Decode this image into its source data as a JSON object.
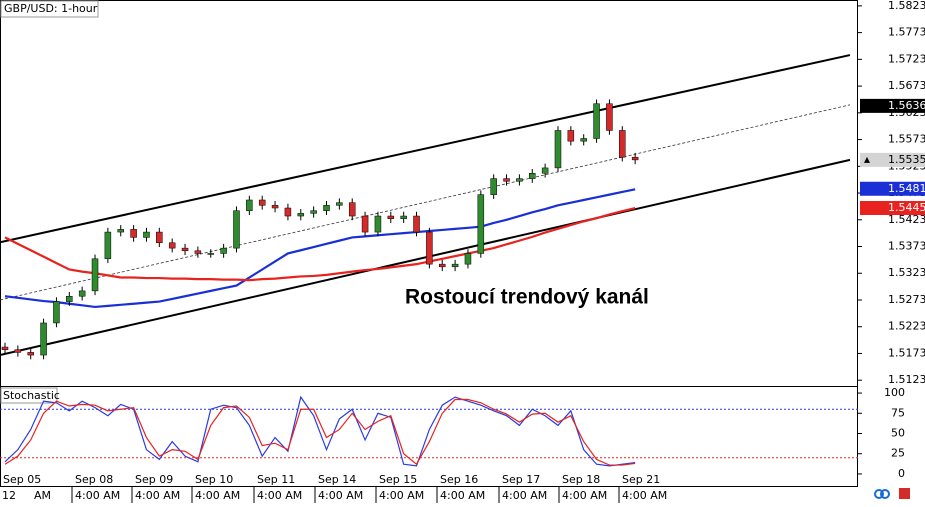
{
  "chart_data": {
    "type": "candlestick",
    "title": "GBP/USD: 1-hour",
    "annotation": "Rostoucí trendový kanál",
    "up_color": "#2e8b2e",
    "down_color": "#d42a2a",
    "open": [
      1.5185,
      1.518,
      1.5175,
      1.517,
      1.523,
      1.527,
      1.528,
      1.529,
      1.535,
      1.54,
      1.5405,
      1.539,
      1.54,
      1.538,
      1.537,
      1.5365,
      1.536,
      1.536,
      1.537,
      1.544,
      1.546,
      1.545,
      1.5445,
      1.543,
      1.5435,
      1.544,
      1.545,
      1.5455,
      1.543,
      1.54,
      1.543,
      1.5425,
      1.543,
      1.54,
      1.534,
      1.5335,
      1.534,
      1.536,
      1.547,
      1.55,
      1.5495,
      1.55,
      1.551,
      1.552,
      1.559,
      1.557,
      1.5575,
      1.564,
      1.559,
      1.554
    ],
    "high": [
      1.5193,
      1.5188,
      1.5183,
      1.5238,
      1.5278,
      1.5288,
      1.5298,
      1.5358,
      1.5408,
      1.5413,
      1.5413,
      1.5408,
      1.5408,
      1.5388,
      1.5378,
      1.5373,
      1.5368,
      1.5378,
      1.5448,
      1.5468,
      1.5468,
      1.5458,
      1.5453,
      1.5443,
      1.5448,
      1.5458,
      1.5463,
      1.5463,
      1.5438,
      1.5438,
      1.5438,
      1.5438,
      1.5438,
      1.5408,
      1.5348,
      1.5348,
      1.5368,
      1.5478,
      1.5508,
      1.5508,
      1.5508,
      1.5518,
      1.5528,
      1.5598,
      1.5598,
      1.5583,
      1.5648,
      1.5648,
      1.5598,
      1.5548
    ],
    "low": [
      1.5172,
      1.5167,
      1.5162,
      1.5162,
      1.5222,
      1.5262,
      1.5272,
      1.5282,
      1.5342,
      1.5392,
      1.5382,
      1.5382,
      1.5372,
      1.5362,
      1.5357,
      1.5352,
      1.5352,
      1.5352,
      1.5362,
      1.5432,
      1.5442,
      1.5437,
      1.5422,
      1.5422,
      1.5427,
      1.5432,
      1.5442,
      1.5422,
      1.5392,
      1.5392,
      1.5417,
      1.5417,
      1.5392,
      1.5332,
      1.5327,
      1.5327,
      1.5332,
      1.5352,
      1.5462,
      1.5487,
      1.5487,
      1.5492,
      1.5502,
      1.5512,
      1.5562,
      1.5562,
      1.5567,
      1.5582,
      1.5532,
      1.5527
    ],
    "close": [
      1.518,
      1.5175,
      1.517,
      1.523,
      1.527,
      1.528,
      1.529,
      1.535,
      1.54,
      1.5405,
      1.539,
      1.54,
      1.538,
      1.537,
      1.5365,
      1.536,
      1.536,
      1.537,
      1.544,
      1.546,
      1.545,
      1.5445,
      1.543,
      1.5435,
      1.544,
      1.545,
      1.5455,
      1.543,
      1.54,
      1.543,
      1.5425,
      1.543,
      1.54,
      1.534,
      1.5335,
      1.534,
      1.536,
      1.547,
      1.55,
      1.5495,
      1.55,
      1.551,
      1.552,
      1.559,
      1.557,
      1.5575,
      1.564,
      1.559,
      1.554,
      1.5535
    ],
    "moving_averages": [
      {
        "color": "#1a2fd6",
        "values": [
          1.528,
          1.5277,
          1.5274,
          1.5271,
          1.5269,
          1.5266,
          1.5263,
          1.526,
          1.5262,
          1.5264,
          1.5266,
          1.5268,
          1.527,
          1.5275,
          1.528,
          1.5285,
          1.529,
          1.5295,
          1.53,
          1.5315,
          1.533,
          1.5345,
          1.536,
          1.5366,
          1.5372,
          1.5378,
          1.5384,
          1.539,
          1.5392,
          1.5394,
          1.5396,
          1.5398,
          1.54,
          1.5402,
          1.5404,
          1.5406,
          1.5408,
          1.541,
          1.5417,
          1.5423,
          1.543,
          1.5437,
          1.5443,
          1.545,
          1.5455,
          1.546,
          1.5465,
          1.547,
          1.5475,
          1.548
        ]
      },
      {
        "color": "#e8231f",
        "values": [
          1.539,
          1.5378,
          1.5366,
          1.5354,
          1.5342,
          1.533,
          1.5326,
          1.5323,
          1.5319,
          1.5315,
          1.5315,
          1.5314,
          1.5314,
          1.5313,
          1.5313,
          1.5312,
          1.5312,
          1.5311,
          1.5311,
          1.531,
          1.5312,
          1.5313,
          1.5315,
          1.5317,
          1.5318,
          1.532,
          1.5323,
          1.5326,
          1.5329,
          1.5331,
          1.5334,
          1.5337,
          1.534,
          1.5345,
          1.535,
          1.5355,
          1.536,
          1.5365,
          1.537,
          1.5377,
          1.5384,
          1.5391,
          1.5399,
          1.5406,
          1.5413,
          1.542,
          1.5426,
          1.5433,
          1.5439,
          1.5445
        ]
      }
    ],
    "channel": {
      "upper": [
        1.5381,
        1.5731
      ],
      "middle": [
        1.5273,
        1.5638
      ],
      "lower": [
        1.517,
        1.5535
      ]
    },
    "price_labels": [
      {
        "value": 1.5636,
        "color": "#000000"
      },
      {
        "value": 1.5535,
        "color": "#d4d4d4"
      },
      {
        "value": 1.5481,
        "color": "#1a2fd6"
      },
      {
        "value": 1.5445,
        "color": "#e8231f"
      }
    ],
    "ylim": [
      1.5114,
      1.5834
    ],
    "yticks": [
      1.5823,
      1.5773,
      1.5723,
      1.5673,
      1.5623,
      1.5573,
      1.5523,
      1.5473,
      1.5423,
      1.5373,
      1.5323,
      1.5273,
      1.5223,
      1.5173,
      1.5123
    ],
    "x_labels_top": [
      "Sep 05",
      "Sep 08",
      "Sep 09",
      "Sep 10",
      "Sep 11",
      "Sep 14",
      "Sep 15",
      "Sep 16",
      "Sep 17",
      "Sep 18",
      "Sep 21"
    ],
    "x_labels_bottom": [
      "12",
      "AM",
      "4:00 AM",
      "4:00 AM",
      "4:00 AM",
      "4:00 AM",
      "4:00 AM",
      "4:00 AM",
      "4:00 AM",
      "4:00 AM",
      "4:00 AM",
      "4:00 AM"
    ],
    "indicator": {
      "title": "Stochastic",
      "type": "line",
      "ylim": [
        -7.5,
        107.5
      ],
      "yticks": [
        0,
        25,
        50,
        75,
        100
      ],
      "levels": [
        80,
        20
      ],
      "series": [
        {
          "color": "#2a3ce0",
          "values": [
            15,
            30,
            55,
            90,
            88,
            78,
            90,
            82,
            72,
            86,
            80,
            30,
            18,
            40,
            22,
            15,
            80,
            85,
            82,
            60,
            22,
            45,
            28,
            95,
            72,
            30,
            68,
            80,
            42,
            75,
            70,
            12,
            10,
            55,
            85,
            95,
            90,
            85,
            78,
            72,
            60,
            80,
            72,
            60,
            78,
            30,
            12,
            10,
            12,
            14
          ]
        },
        {
          "color": "#e8231f",
          "values": [
            12,
            22,
            42,
            75,
            90,
            84,
            86,
            85,
            78,
            80,
            82,
            45,
            22,
            30,
            28,
            18,
            60,
            82,
            84,
            70,
            35,
            38,
            30,
            80,
            80,
            45,
            55,
            75,
            55,
            65,
            72,
            25,
            12,
            40,
            75,
            92,
            92,
            88,
            80,
            74,
            64,
            74,
            75,
            64,
            72,
            40,
            18,
            11,
            11,
            13
          ]
        }
      ]
    }
  }
}
